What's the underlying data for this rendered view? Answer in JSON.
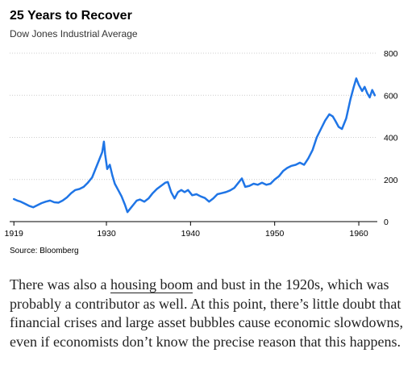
{
  "title": "25 Years to Recover",
  "subtitle": "Dow Jones Industrial Average",
  "source": "Source: Bloomberg",
  "article": {
    "before_link": "There was also a ",
    "link_text": "housing boom",
    "after_link": " and bust in the 1920s, which was probably a contributor as well. At this point, there’s little doubt that financial crises and large asset bubbles cause economic slowdowns, even if economists don’t know the precise reason that this happens."
  },
  "colors": {
    "line": "#1f75e6",
    "grid": "#cccccc",
    "axis": "#000000"
  },
  "chart_data": {
    "type": "line",
    "title": "25 Years to Recover",
    "subtitle": "Dow Jones Industrial Average",
    "xlabel": "",
    "ylabel": "",
    "xlim": [
      1918.5,
      1962.2
    ],
    "ylim": [
      0,
      800
    ],
    "x_ticks": [
      1919,
      1930,
      1940,
      1950,
      1960
    ],
    "x_tick_labels": [
      "1919",
      "1930",
      "1940",
      "1950",
      "1960"
    ],
    "y_ticks": [
      0,
      200,
      400,
      600,
      800
    ],
    "y_tick_labels": [
      "0",
      "200",
      "400",
      "600",
      "800"
    ],
    "grid": "horizontal",
    "legend": "none",
    "series": [
      {
        "values": [
          [
            1919.0,
            107
          ],
          [
            1919.4,
            100
          ],
          [
            1919.8,
            95
          ],
          [
            1920.3,
            85
          ],
          [
            1920.8,
            75
          ],
          [
            1921.3,
            68
          ],
          [
            1921.8,
            78
          ],
          [
            1922.3,
            88
          ],
          [
            1922.8,
            95
          ],
          [
            1923.3,
            100
          ],
          [
            1923.8,
            92
          ],
          [
            1924.3,
            90
          ],
          [
            1924.8,
            100
          ],
          [
            1925.3,
            115
          ],
          [
            1925.8,
            135
          ],
          [
            1926.3,
            150
          ],
          [
            1926.8,
            155
          ],
          [
            1927.3,
            165
          ],
          [
            1927.8,
            185
          ],
          [
            1928.3,
            210
          ],
          [
            1928.8,
            260
          ],
          [
            1929.2,
            300
          ],
          [
            1929.5,
            330
          ],
          [
            1929.7,
            380
          ],
          [
            1929.85,
            320
          ],
          [
            1930.1,
            250
          ],
          [
            1930.4,
            270
          ],
          [
            1930.7,
            220
          ],
          [
            1931.0,
            180
          ],
          [
            1931.4,
            150
          ],
          [
            1931.8,
            120
          ],
          [
            1932.2,
            80
          ],
          [
            1932.5,
            45
          ],
          [
            1932.8,
            60
          ],
          [
            1933.2,
            80
          ],
          [
            1933.6,
            100
          ],
          [
            1934.0,
            105
          ],
          [
            1934.5,
            95
          ],
          [
            1935.0,
            110
          ],
          [
            1935.5,
            135
          ],
          [
            1936.0,
            155
          ],
          [
            1936.5,
            170
          ],
          [
            1937.0,
            185
          ],
          [
            1937.3,
            188
          ],
          [
            1937.7,
            140
          ],
          [
            1938.1,
            110
          ],
          [
            1938.5,
            140
          ],
          [
            1938.9,
            150
          ],
          [
            1939.3,
            140
          ],
          [
            1939.7,
            150
          ],
          [
            1940.2,
            125
          ],
          [
            1940.7,
            130
          ],
          [
            1941.2,
            120
          ],
          [
            1941.7,
            112
          ],
          [
            1942.2,
            95
          ],
          [
            1942.7,
            110
          ],
          [
            1943.2,
            130
          ],
          [
            1943.7,
            135
          ],
          [
            1944.2,
            140
          ],
          [
            1944.7,
            148
          ],
          [
            1945.2,
            160
          ],
          [
            1945.7,
            185
          ],
          [
            1946.1,
            205
          ],
          [
            1946.5,
            165
          ],
          [
            1947.0,
            170
          ],
          [
            1947.5,
            180
          ],
          [
            1948.0,
            175
          ],
          [
            1948.5,
            185
          ],
          [
            1949.0,
            175
          ],
          [
            1949.5,
            180
          ],
          [
            1950.0,
            200
          ],
          [
            1950.5,
            215
          ],
          [
            1951.0,
            240
          ],
          [
            1951.5,
            255
          ],
          [
            1952.0,
            265
          ],
          [
            1952.5,
            270
          ],
          [
            1953.0,
            280
          ],
          [
            1953.5,
            270
          ],
          [
            1954.0,
            300
          ],
          [
            1954.5,
            340
          ],
          [
            1955.0,
            400
          ],
          [
            1955.5,
            440
          ],
          [
            1956.0,
            480
          ],
          [
            1956.5,
            510
          ],
          [
            1956.9,
            500
          ],
          [
            1957.2,
            480
          ],
          [
            1957.6,
            450
          ],
          [
            1958.0,
            440
          ],
          [
            1958.5,
            490
          ],
          [
            1959.0,
            580
          ],
          [
            1959.4,
            640
          ],
          [
            1959.7,
            680
          ],
          [
            1960.0,
            650
          ],
          [
            1960.4,
            620
          ],
          [
            1960.7,
            640
          ],
          [
            1961.0,
            610
          ],
          [
            1961.3,
            590
          ],
          [
            1961.6,
            625
          ],
          [
            1961.9,
            600
          ]
        ]
      }
    ]
  }
}
